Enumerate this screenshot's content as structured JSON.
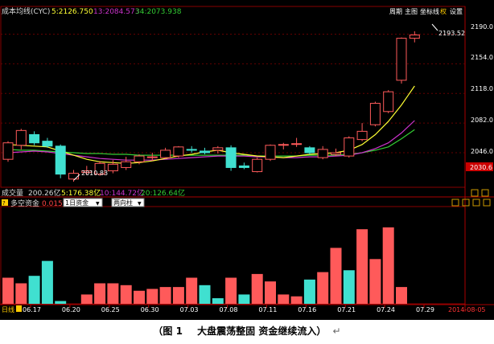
{
  "header": {
    "indicator": "成本均线(CYC)",
    "ma5": "5:2126.750",
    "ma13": "13:2084.573",
    "ma34": "34:2073.938",
    "menu": [
      "周期",
      "主图",
      "坐标线",
      "权",
      "设置"
    ]
  },
  "price_panel": {
    "axis_ticks": [
      "2190.0",
      "2154.0",
      "2118.0",
      "2082.0",
      "2046.0"
    ],
    "current_price": "2030.6",
    "high_marker": "2193.52",
    "low_marker": "2010.83"
  },
  "volume_bar": {
    "label": "成交量",
    "value": "200.26亿",
    "ma5": "5:176.38亿",
    "ma10": "10:144.72亿",
    "ma20": "20:126.64亿"
  },
  "fund_panel": {
    "help_icon": "?",
    "title": "多空资金",
    "percent": "0.015%",
    "period_select": "1日资金",
    "mode_select": "两向柱"
  },
  "bottom_axis": {
    "period_tag": "日线",
    "dates": [
      "06.17",
      "06.20",
      "06.25",
      "06.30",
      "07.03",
      "07.08",
      "07.11",
      "07.16",
      "07.21",
      "07.24",
      "07.29"
    ],
    "current_date": "2014-08-05"
  },
  "caption": {
    "number": "（图 1",
    "text": "大盘震荡整固  资金继续流入）",
    "return_mark": "↵"
  },
  "colors": {
    "up": "#ff5a5a",
    "down": "#40e0d0",
    "ma5": "#ffff33",
    "ma13": "#cc33cc",
    "ma34": "#33cc33",
    "axis_red": "#aa0000",
    "text_yellow": "#ffff33",
    "price_tag_bg": "#cc0000"
  },
  "chart_data": [
    {
      "type": "candlestick",
      "ylim": [
        2005,
        2210
      ],
      "candles": [
        {
          "o": 2038,
          "h": 2060,
          "l": 2035,
          "c": 2058
        },
        {
          "o": 2055,
          "h": 2075,
          "l": 2050,
          "c": 2073
        },
        {
          "o": 2068,
          "h": 2072,
          "l": 2055,
          "c": 2058
        },
        {
          "o": 2060,
          "h": 2064,
          "l": 2052,
          "c": 2054
        },
        {
          "o": 2054,
          "h": 2056,
          "l": 2015,
          "c": 2020
        },
        {
          "o": 2014,
          "h": 2025,
          "l": 2010.8,
          "c": 2021
        },
        {
          "o": 2022,
          "h": 2030,
          "l": 2019,
          "c": 2024
        },
        {
          "o": 2020,
          "h": 2036,
          "l": 2018,
          "c": 2033
        },
        {
          "o": 2024,
          "h": 2037,
          "l": 2021,
          "c": 2032
        },
        {
          "o": 2028,
          "h": 2041,
          "l": 2025,
          "c": 2035
        },
        {
          "o": 2035,
          "h": 2044,
          "l": 2032,
          "c": 2042
        },
        {
          "o": 2040,
          "h": 2046,
          "l": 2036,
          "c": 2041
        },
        {
          "o": 2040,
          "h": 2052,
          "l": 2039,
          "c": 2049
        },
        {
          "o": 2042,
          "h": 2054,
          "l": 2040,
          "c": 2053
        },
        {
          "o": 2050,
          "h": 2054,
          "l": 2046,
          "c": 2049
        },
        {
          "o": 2048,
          "h": 2052,
          "l": 2044,
          "c": 2046
        },
        {
          "o": 2049,
          "h": 2054,
          "l": 2045,
          "c": 2052
        },
        {
          "o": 2052,
          "h": 2055,
          "l": 2024,
          "c": 2028
        },
        {
          "o": 2030,
          "h": 2034,
          "l": 2026,
          "c": 2028
        },
        {
          "o": 2023,
          "h": 2040,
          "l": 2022,
          "c": 2038
        },
        {
          "o": 2038,
          "h": 2056,
          "l": 2036,
          "c": 2055
        },
        {
          "o": 2055,
          "h": 2058,
          "l": 2050,
          "c": 2056
        },
        {
          "o": 2057,
          "h": 2064,
          "l": 2053,
          "c": 2057
        },
        {
          "o": 2052,
          "h": 2054,
          "l": 2044,
          "c": 2046
        },
        {
          "o": 2040,
          "h": 2054,
          "l": 2038,
          "c": 2050
        },
        {
          "o": 2044,
          "h": 2051,
          "l": 2042,
          "c": 2046
        },
        {
          "o": 2042,
          "h": 2066,
          "l": 2040,
          "c": 2064
        },
        {
          "o": 2062,
          "h": 2082,
          "l": 2060,
          "c": 2072
        },
        {
          "o": 2080,
          "h": 2108,
          "l": 2078,
          "c": 2106
        },
        {
          "o": 2096,
          "h": 2122,
          "l": 2094,
          "c": 2120
        },
        {
          "o": 2134,
          "h": 2186,
          "l": 2130,
          "c": 2185
        },
        {
          "o": 2185,
          "h": 2193.5,
          "l": 2180,
          "c": 2189
        }
      ],
      "ma5": [
        2056,
        2055,
        2054,
        2053,
        2048,
        2043,
        2038,
        2035,
        2034,
        2033,
        2034,
        2036,
        2039,
        2042,
        2044,
        2047,
        2049,
        2046,
        2044,
        2042,
        2041,
        2040,
        2042,
        2044,
        2045,
        2046,
        2049,
        2056,
        2068,
        2084,
        2104,
        2127
      ],
      "ma13": [
        2046,
        2047,
        2048,
        2047,
        2045,
        2043,
        2041,
        2039,
        2038,
        2037,
        2037,
        2037,
        2038,
        2039,
        2040,
        2041,
        2042,
        2042,
        2042,
        2041,
        2041,
        2040,
        2040,
        2041,
        2041,
        2042,
        2043,
        2046,
        2051,
        2058,
        2070,
        2085
      ],
      "ma34": [
        2050,
        2049,
        2049,
        2048,
        2047,
        2046,
        2045,
        2045,
        2044,
        2044,
        2043,
        2043,
        2043,
        2043,
        2043,
        2043,
        2043,
        2043,
        2043,
        2042,
        2042,
        2042,
        2042,
        2043,
        2043,
        2043,
        2044,
        2046,
        2049,
        2053,
        2063,
        2074
      ]
    },
    {
      "type": "bar",
      "ylim": [
        0,
        100
      ],
      "values": [
        28,
        22,
        30,
        46,
        3,
        0,
        10,
        22,
        22,
        20,
        14,
        16,
        18,
        18,
        28,
        20,
        6,
        28,
        10,
        32,
        24,
        10,
        8,
        26,
        34,
        60,
        36,
        80,
        48,
        82,
        18
      ]
    }
  ]
}
